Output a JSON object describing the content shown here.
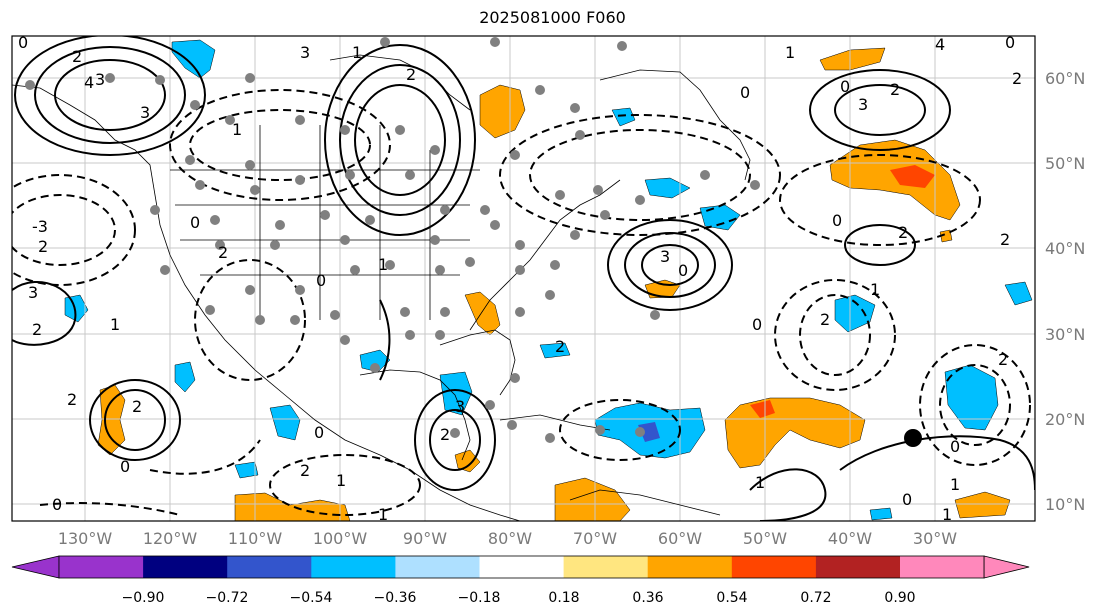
{
  "title": "2025081000 F060",
  "longitude_labels": [
    "130°W",
    "120°W",
    "110°W",
    "100°W",
    "90°W",
    "80°W",
    "70°W",
    "60°W",
    "50°W",
    "40°W",
    "30°W"
  ],
  "latitude_labels": [
    "60°N",
    "50°N",
    "40°N",
    "30°N",
    "20°N",
    "10°N"
  ],
  "colorbar": {
    "ticks": [
      "−0.90",
      "−0.72",
      "−0.54",
      "−0.36",
      "−0.18",
      "0.18",
      "0.36",
      "0.54",
      "0.72",
      "0.90"
    ],
    "colors": [
      "#9933cc",
      "#000080",
      "#3355cc",
      "#00bfff",
      "#aee0ff",
      "#ffffff",
      "#ffe680",
      "#ffa500",
      "#ff4500",
      "#b22222",
      "#ff88bb"
    ],
    "under_color": "#9933cc",
    "over_color": "#ff88bb"
  },
  "contour_labels": [
    "0",
    "2",
    "3",
    "4",
    "3",
    "1",
    "3",
    "1",
    "2",
    "0",
    "0",
    "2",
    "3",
    "2",
    "0",
    "1",
    "4",
    "2",
    "0",
    "2",
    "3",
    "0",
    "-3",
    "2",
    "3",
    "2",
    "1",
    "0",
    "2",
    "1",
    "0",
    "0",
    "1",
    "2",
    "2",
    "2",
    "2",
    "0",
    "1",
    "1",
    "0",
    "2",
    "3",
    "0",
    "1",
    "0",
    "1",
    "2",
    "1",
    "0",
    "2"
  ],
  "marker": {
    "label": "storm-center",
    "color": "#000000"
  },
  "colors": {
    "land_fill": "#ffffff",
    "grid": "#c8c8c8",
    "frame": "#000000"
  }
}
